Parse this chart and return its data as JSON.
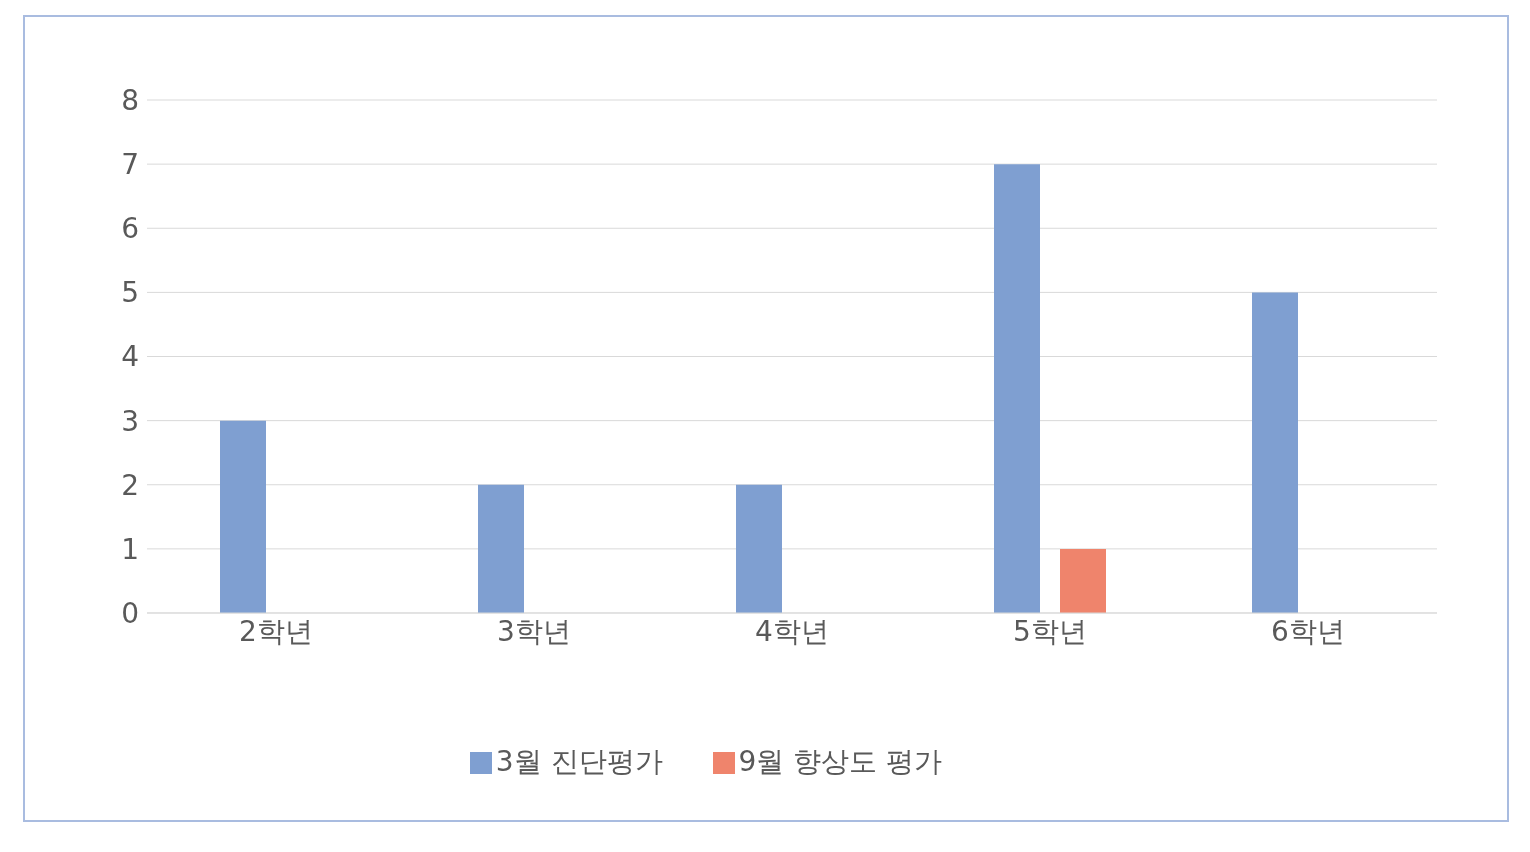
{
  "chart_data": {
    "type": "bar",
    "categories": [
      "2학년",
      "3학년",
      "4학년",
      "5학년",
      "6학년"
    ],
    "series": [
      {
        "name": "3월 진단평가",
        "color": "#7f9fd1",
        "values": [
          3,
          2,
          2,
          7,
          5
        ]
      },
      {
        "name": "9월 향상도 평가",
        "color": "#ef846c",
        "values": [
          0,
          0,
          0,
          1,
          0
        ]
      }
    ],
    "ylim": [
      0,
      8
    ],
    "yticks": [
      0,
      1,
      2,
      3,
      4,
      5,
      6,
      7,
      8
    ],
    "grid": "y",
    "legend": "bottom"
  }
}
